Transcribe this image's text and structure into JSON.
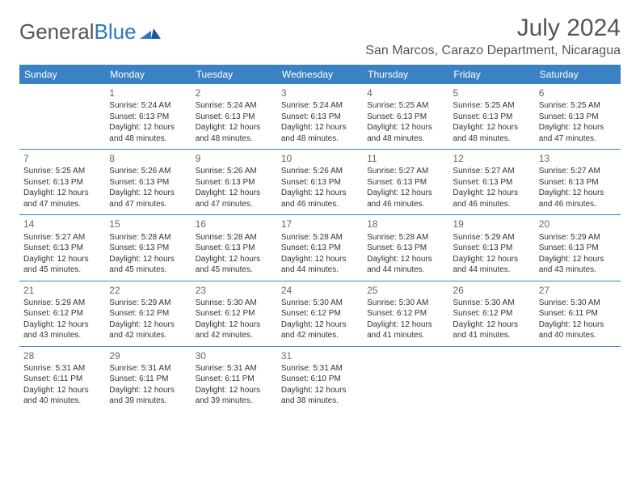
{
  "brand": {
    "word1": "General",
    "word2": "Blue"
  },
  "title": "July 2024",
  "location": "San Marcos, Carazo Department, Nicaragua",
  "colors": {
    "header_bg": "#3a82c4",
    "header_text": "#ffffff",
    "border": "#3a82c4",
    "text": "#333333",
    "muted": "#555555",
    "brand_blue": "#2f78bd"
  },
  "day_headers": [
    "Sunday",
    "Monday",
    "Tuesday",
    "Wednesday",
    "Thursday",
    "Friday",
    "Saturday"
  ],
  "weeks": [
    [
      null,
      {
        "n": "1",
        "sr": "Sunrise: 5:24 AM",
        "ss": "Sunset: 6:13 PM",
        "d1": "Daylight: 12 hours",
        "d2": "and 48 minutes."
      },
      {
        "n": "2",
        "sr": "Sunrise: 5:24 AM",
        "ss": "Sunset: 6:13 PM",
        "d1": "Daylight: 12 hours",
        "d2": "and 48 minutes."
      },
      {
        "n": "3",
        "sr": "Sunrise: 5:24 AM",
        "ss": "Sunset: 6:13 PM",
        "d1": "Daylight: 12 hours",
        "d2": "and 48 minutes."
      },
      {
        "n": "4",
        "sr": "Sunrise: 5:25 AM",
        "ss": "Sunset: 6:13 PM",
        "d1": "Daylight: 12 hours",
        "d2": "and 48 minutes."
      },
      {
        "n": "5",
        "sr": "Sunrise: 5:25 AM",
        "ss": "Sunset: 6:13 PM",
        "d1": "Daylight: 12 hours",
        "d2": "and 48 minutes."
      },
      {
        "n": "6",
        "sr": "Sunrise: 5:25 AM",
        "ss": "Sunset: 6:13 PM",
        "d1": "Daylight: 12 hours",
        "d2": "and 47 minutes."
      }
    ],
    [
      {
        "n": "7",
        "sr": "Sunrise: 5:25 AM",
        "ss": "Sunset: 6:13 PM",
        "d1": "Daylight: 12 hours",
        "d2": "and 47 minutes."
      },
      {
        "n": "8",
        "sr": "Sunrise: 5:26 AM",
        "ss": "Sunset: 6:13 PM",
        "d1": "Daylight: 12 hours",
        "d2": "and 47 minutes."
      },
      {
        "n": "9",
        "sr": "Sunrise: 5:26 AM",
        "ss": "Sunset: 6:13 PM",
        "d1": "Daylight: 12 hours",
        "d2": "and 47 minutes."
      },
      {
        "n": "10",
        "sr": "Sunrise: 5:26 AM",
        "ss": "Sunset: 6:13 PM",
        "d1": "Daylight: 12 hours",
        "d2": "and 46 minutes."
      },
      {
        "n": "11",
        "sr": "Sunrise: 5:27 AM",
        "ss": "Sunset: 6:13 PM",
        "d1": "Daylight: 12 hours",
        "d2": "and 46 minutes."
      },
      {
        "n": "12",
        "sr": "Sunrise: 5:27 AM",
        "ss": "Sunset: 6:13 PM",
        "d1": "Daylight: 12 hours",
        "d2": "and 46 minutes."
      },
      {
        "n": "13",
        "sr": "Sunrise: 5:27 AM",
        "ss": "Sunset: 6:13 PM",
        "d1": "Daylight: 12 hours",
        "d2": "and 46 minutes."
      }
    ],
    [
      {
        "n": "14",
        "sr": "Sunrise: 5:27 AM",
        "ss": "Sunset: 6:13 PM",
        "d1": "Daylight: 12 hours",
        "d2": "and 45 minutes."
      },
      {
        "n": "15",
        "sr": "Sunrise: 5:28 AM",
        "ss": "Sunset: 6:13 PM",
        "d1": "Daylight: 12 hours",
        "d2": "and 45 minutes."
      },
      {
        "n": "16",
        "sr": "Sunrise: 5:28 AM",
        "ss": "Sunset: 6:13 PM",
        "d1": "Daylight: 12 hours",
        "d2": "and 45 minutes."
      },
      {
        "n": "17",
        "sr": "Sunrise: 5:28 AM",
        "ss": "Sunset: 6:13 PM",
        "d1": "Daylight: 12 hours",
        "d2": "and 44 minutes."
      },
      {
        "n": "18",
        "sr": "Sunrise: 5:28 AM",
        "ss": "Sunset: 6:13 PM",
        "d1": "Daylight: 12 hours",
        "d2": "and 44 minutes."
      },
      {
        "n": "19",
        "sr": "Sunrise: 5:29 AM",
        "ss": "Sunset: 6:13 PM",
        "d1": "Daylight: 12 hours",
        "d2": "and 44 minutes."
      },
      {
        "n": "20",
        "sr": "Sunrise: 5:29 AM",
        "ss": "Sunset: 6:13 PM",
        "d1": "Daylight: 12 hours",
        "d2": "and 43 minutes."
      }
    ],
    [
      {
        "n": "21",
        "sr": "Sunrise: 5:29 AM",
        "ss": "Sunset: 6:12 PM",
        "d1": "Daylight: 12 hours",
        "d2": "and 43 minutes."
      },
      {
        "n": "22",
        "sr": "Sunrise: 5:29 AM",
        "ss": "Sunset: 6:12 PM",
        "d1": "Daylight: 12 hours",
        "d2": "and 42 minutes."
      },
      {
        "n": "23",
        "sr": "Sunrise: 5:30 AM",
        "ss": "Sunset: 6:12 PM",
        "d1": "Daylight: 12 hours",
        "d2": "and 42 minutes."
      },
      {
        "n": "24",
        "sr": "Sunrise: 5:30 AM",
        "ss": "Sunset: 6:12 PM",
        "d1": "Daylight: 12 hours",
        "d2": "and 42 minutes."
      },
      {
        "n": "25",
        "sr": "Sunrise: 5:30 AM",
        "ss": "Sunset: 6:12 PM",
        "d1": "Daylight: 12 hours",
        "d2": "and 41 minutes."
      },
      {
        "n": "26",
        "sr": "Sunrise: 5:30 AM",
        "ss": "Sunset: 6:12 PM",
        "d1": "Daylight: 12 hours",
        "d2": "and 41 minutes."
      },
      {
        "n": "27",
        "sr": "Sunrise: 5:30 AM",
        "ss": "Sunset: 6:11 PM",
        "d1": "Daylight: 12 hours",
        "d2": "and 40 minutes."
      }
    ],
    [
      {
        "n": "28",
        "sr": "Sunrise: 5:31 AM",
        "ss": "Sunset: 6:11 PM",
        "d1": "Daylight: 12 hours",
        "d2": "and 40 minutes."
      },
      {
        "n": "29",
        "sr": "Sunrise: 5:31 AM",
        "ss": "Sunset: 6:11 PM",
        "d1": "Daylight: 12 hours",
        "d2": "and 39 minutes."
      },
      {
        "n": "30",
        "sr": "Sunrise: 5:31 AM",
        "ss": "Sunset: 6:11 PM",
        "d1": "Daylight: 12 hours",
        "d2": "and 39 minutes."
      },
      {
        "n": "31",
        "sr": "Sunrise: 5:31 AM",
        "ss": "Sunset: 6:10 PM",
        "d1": "Daylight: 12 hours",
        "d2": "and 38 minutes."
      },
      null,
      null,
      null
    ]
  ]
}
